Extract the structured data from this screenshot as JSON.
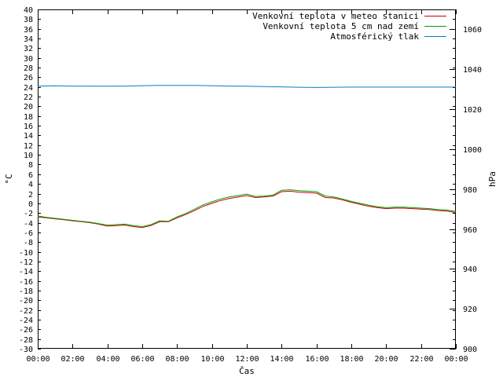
{
  "chart_data": {
    "type": "line",
    "xlabel": "Čas",
    "ylabel": "°C",
    "y2label": "hPa",
    "xlim": [
      0,
      24
    ],
    "ylim": [
      -30,
      40
    ],
    "y2lim": [
      900,
      1070
    ],
    "x_ticks": [
      "00:00",
      "02:00",
      "04:00",
      "06:00",
      "08:00",
      "10:00",
      "12:00",
      "14:00",
      "16:00",
      "18:00",
      "20:00",
      "22:00",
      "00:00"
    ],
    "y_ticks": [
      -30,
      -28,
      -26,
      -24,
      -22,
      -20,
      -18,
      -16,
      -14,
      -12,
      -10,
      -8,
      -6,
      -4,
      -2,
      0,
      2,
      4,
      6,
      8,
      10,
      12,
      14,
      16,
      18,
      20,
      22,
      24,
      26,
      28,
      30,
      32,
      34,
      36,
      38,
      40
    ],
    "y2_ticks": [
      900,
      920,
      940,
      960,
      980,
      1000,
      1020,
      1040,
      1060
    ],
    "grid": false,
    "legend_position": "top-right",
    "series": [
      {
        "name": "Venkovní teplota v meteo stanici",
        "axis": "left",
        "color": "#cc0000",
        "x": [
          0,
          0.5,
          1,
          1.5,
          2,
          2.5,
          3,
          3.5,
          4,
          4.5,
          5,
          5.5,
          6,
          6.5,
          7,
          7.5,
          8,
          8.5,
          9,
          9.5,
          10,
          10.5,
          11,
          11.5,
          12,
          12.5,
          13,
          13.5,
          14,
          14.5,
          15,
          15.5,
          16,
          16.5,
          17,
          17.5,
          18,
          18.5,
          19,
          19.5,
          20,
          20.5,
          21,
          21.5,
          22,
          22.5,
          23,
          23.5,
          24
        ],
        "values": [
          -2.8,
          -3.0,
          -3.2,
          -3.4,
          -3.6,
          -3.8,
          -4.0,
          -4.3,
          -4.7,
          -4.6,
          -4.5,
          -4.8,
          -5.0,
          -4.6,
          -3.8,
          -3.8,
          -3.0,
          -2.3,
          -1.5,
          -0.6,
          0.0,
          0.6,
          1.0,
          1.3,
          1.6,
          1.2,
          1.3,
          1.5,
          2.4,
          2.5,
          2.3,
          2.2,
          2.1,
          1.2,
          1.1,
          0.7,
          0.2,
          -0.2,
          -0.6,
          -0.9,
          -1.1,
          -1.0,
          -1.0,
          -1.1,
          -1.2,
          -1.3,
          -1.5,
          -1.6,
          -1.9
        ]
      },
      {
        "name": "Venkovní teplota 5 cm nad zemí",
        "axis": "left",
        "color": "#00a000",
        "x": [
          0,
          0.5,
          1,
          1.5,
          2,
          2.5,
          3,
          3.5,
          4,
          4.5,
          5,
          5.5,
          6,
          6.5,
          7,
          7.5,
          8,
          8.5,
          9,
          9.5,
          10,
          10.5,
          11,
          11.5,
          12,
          12.5,
          13,
          13.5,
          14,
          14.5,
          15,
          15.5,
          16,
          16.5,
          17,
          17.5,
          18,
          18.5,
          19,
          19.5,
          20,
          20.5,
          21,
          21.5,
          22,
          22.5,
          23,
          23.5,
          24
        ],
        "values": [
          -2.6,
          -2.9,
          -3.1,
          -3.3,
          -3.5,
          -3.7,
          -3.9,
          -4.2,
          -4.5,
          -4.4,
          -4.3,
          -4.6,
          -4.8,
          -4.4,
          -3.6,
          -3.7,
          -2.8,
          -2.1,
          -1.2,
          -0.3,
          0.3,
          0.9,
          1.3,
          1.6,
          1.9,
          1.4,
          1.5,
          1.7,
          2.7,
          2.8,
          2.6,
          2.5,
          2.4,
          1.5,
          1.3,
          0.9,
          0.4,
          0.0,
          -0.4,
          -0.7,
          -0.9,
          -0.8,
          -0.8,
          -0.9,
          -1.0,
          -1.1,
          -1.3,
          -1.4,
          -1.7
        ]
      },
      {
        "name": "Atmosférický tlak",
        "axis": "right",
        "color": "#0080c0",
        "x": [
          0,
          1,
          2,
          3,
          4,
          5,
          6,
          7,
          8,
          9,
          10,
          11,
          12,
          13,
          14,
          15,
          16,
          17,
          18,
          19,
          20,
          21,
          22,
          23,
          24
        ],
        "values": [
          1031.6,
          1031.7,
          1031.6,
          1031.6,
          1031.5,
          1031.6,
          1031.8,
          1031.9,
          1031.9,
          1031.9,
          1031.8,
          1031.6,
          1031.5,
          1031.3,
          1031.2,
          1031.0,
          1030.9,
          1031.0,
          1031.1,
          1031.1,
          1031.1,
          1031.1,
          1031.1,
          1031.1,
          1031.1
        ]
      }
    ]
  }
}
